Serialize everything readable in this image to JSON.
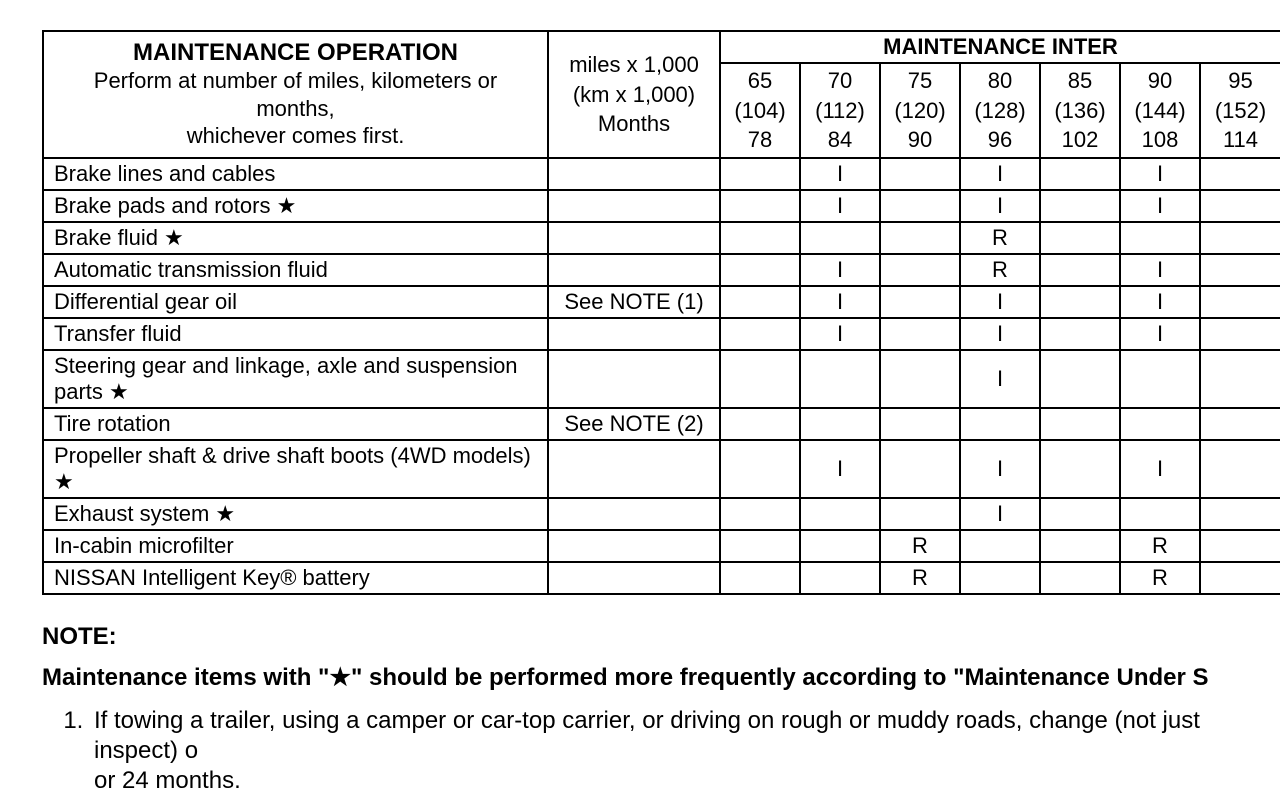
{
  "header": {
    "title": "MAINTENANCE OPERATION",
    "subtitle_l1": "Perform at number of miles, kilometers or months,",
    "subtitle_l2": "whichever comes first.",
    "miles_l1": "miles x 1,000",
    "miles_l2": "(km x 1,000)",
    "miles_l3": "Months",
    "interval_super": "MAINTENANCE INTER"
  },
  "intervals": [
    {
      "miles": "65",
      "km": "(104)",
      "months": "78"
    },
    {
      "miles": "70",
      "km": "(112)",
      "months": "84"
    },
    {
      "miles": "75",
      "km": "(120)",
      "months": "90"
    },
    {
      "miles": "80",
      "km": "(128)",
      "months": "96"
    },
    {
      "miles": "85",
      "km": "(136)",
      "months": "102"
    },
    {
      "miles": "90",
      "km": "(144)",
      "months": "108"
    },
    {
      "miles": "95",
      "km": "(152)",
      "months": "114"
    }
  ],
  "rows": [
    {
      "op": "Brake lines and cables",
      "note": "",
      "cells": [
        "",
        "I",
        "",
        "I",
        "",
        "I",
        ""
      ]
    },
    {
      "op": "Brake pads and rotors ★",
      "note": "",
      "cells": [
        "",
        "I",
        "",
        "I",
        "",
        "I",
        ""
      ]
    },
    {
      "op": "Brake fluid ★",
      "note": "",
      "cells": [
        "",
        "",
        "",
        "R",
        "",
        "",
        ""
      ]
    },
    {
      "op": "Automatic transmission fluid",
      "note": "",
      "cells": [
        "",
        "I",
        "",
        "R",
        "",
        "I",
        ""
      ]
    },
    {
      "op": "Differential gear oil",
      "note": "See NOTE (1)",
      "cells": [
        "",
        "I",
        "",
        "I",
        "",
        "I",
        ""
      ]
    },
    {
      "op": "Transfer fluid",
      "note": "",
      "cells": [
        "",
        "I",
        "",
        "I",
        "",
        "I",
        ""
      ]
    },
    {
      "op": "Steering gear and linkage, axle and suspension parts ★",
      "note": "",
      "cells": [
        "",
        "",
        "",
        "I",
        "",
        "",
        ""
      ]
    },
    {
      "op": "Tire rotation",
      "note": "See NOTE (2)",
      "cells": [
        "",
        "",
        "",
        "",
        "",
        "",
        ""
      ]
    },
    {
      "op": "Propeller shaft & drive shaft boots (4WD models) ★",
      "note": "",
      "cells": [
        "",
        "I",
        "",
        "I",
        "",
        "I",
        ""
      ]
    },
    {
      "op": "Exhaust system ★",
      "note": "",
      "cells": [
        "",
        "",
        "",
        "I",
        "",
        "",
        ""
      ]
    },
    {
      "op": "In-cabin microfilter",
      "note": "",
      "cells": [
        "",
        "",
        "R",
        "",
        "",
        "R",
        ""
      ]
    },
    {
      "op": "NISSAN Intelligent Key® battery",
      "note": "",
      "cells": [
        "",
        "",
        "R",
        "",
        "",
        "R",
        ""
      ]
    }
  ],
  "notes": {
    "title": "NOTE:",
    "bold_line": "Maintenance items with \"★\" should be performed more frequently according to \"Maintenance Under S",
    "item1_l1": "If towing a trailer, using a camper or car-top carrier, or driving on rough or muddy roads, change (not just inspect) o",
    "item1_l2": "or 24 months."
  },
  "style": {
    "border_color": "#000000",
    "background": "#ffffff",
    "text_color": "#000000",
    "font_family": "Helvetica, Arial, sans-serif",
    "header_fontsize": 24,
    "body_fontsize": 22
  }
}
